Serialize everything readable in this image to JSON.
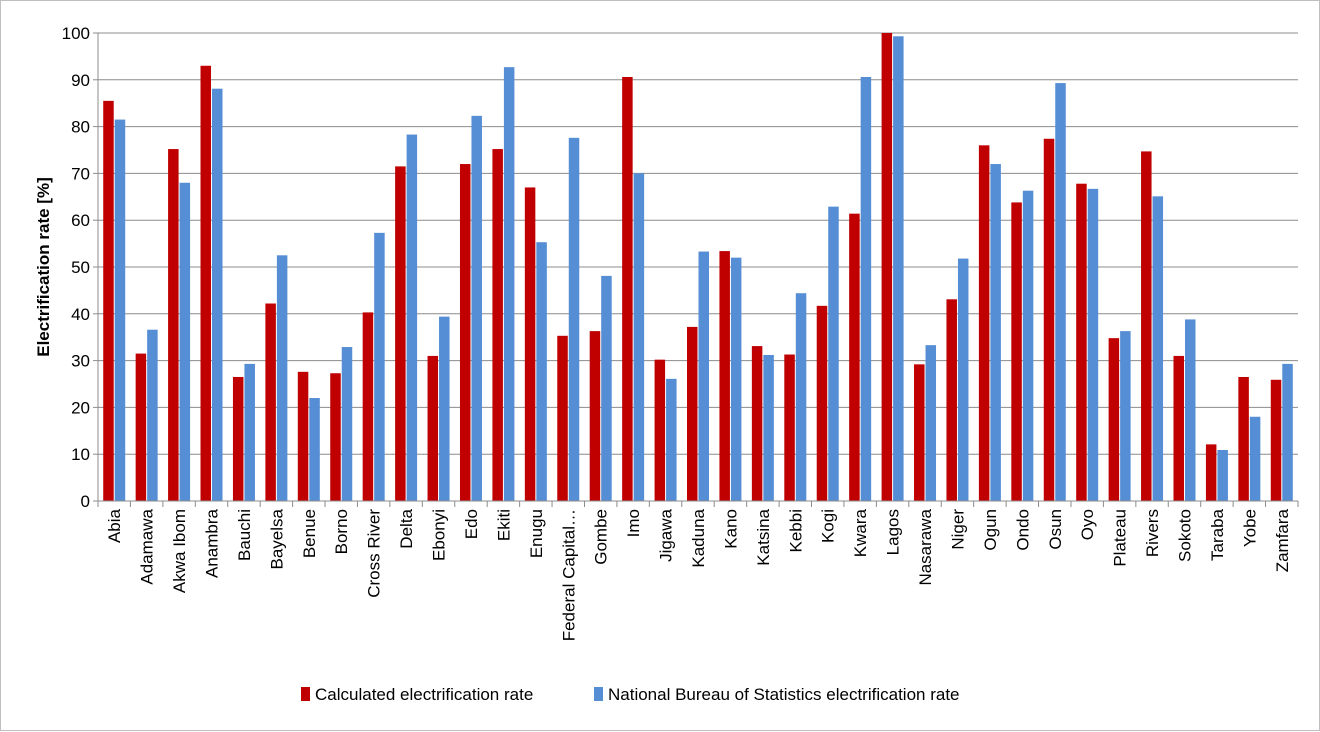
{
  "chart_data": {
    "type": "bar",
    "ylabel": "Electrification rate [%]",
    "xlabel": "",
    "ylim": [
      0,
      100
    ],
    "yticks": [
      0,
      10,
      20,
      30,
      40,
      50,
      60,
      70,
      80,
      90,
      100
    ],
    "grid": true,
    "legend_position": "bottom",
    "categories": [
      "Abia",
      "Adamawa",
      "Akwa Ibom",
      "Anambra",
      "Bauchi",
      "Bayelsa",
      "Benue",
      "Borno",
      "Cross River",
      "Delta",
      "Ebonyi",
      "Edo",
      "Ekiti",
      "Enugu",
      "Federal Capital…",
      "Gombe",
      "Imo",
      "Jigawa",
      "Kaduna",
      "Kano",
      "Katsina",
      "Kebbi",
      "Kogi",
      "Kwara",
      "Lagos",
      "Nasarawa",
      "Niger",
      "Ogun",
      "Ondo",
      "Osun",
      "Oyo",
      "Plateau",
      "Rivers",
      "Sokoto",
      "Taraba",
      "Yobe",
      "Zamfara"
    ],
    "series": [
      {
        "name": "Calculated electrification rate",
        "color": "#c00000",
        "values": [
          85.5,
          31.5,
          75.2,
          93.0,
          26.5,
          42.2,
          27.6,
          27.3,
          40.3,
          71.5,
          31.0,
          72.0,
          75.2,
          67.0,
          35.3,
          36.3,
          90.6,
          30.2,
          37.2,
          53.4,
          33.1,
          31.3,
          41.7,
          61.4,
          100.0,
          29.2,
          43.1,
          76.0,
          63.8,
          77.4,
          67.8,
          34.8,
          74.7,
          31.0,
          12.1,
          26.5,
          25.9
        ]
      },
      {
        "name": "National Bureau of Statistics electrification rate",
        "color": "#558ed5",
        "values": [
          81.5,
          36.6,
          68.0,
          88.1,
          29.3,
          52.5,
          22.0,
          32.9,
          57.3,
          78.3,
          39.4,
          82.3,
          92.7,
          55.3,
          77.6,
          48.1,
          70.0,
          26.1,
          53.3,
          52.0,
          31.2,
          44.4,
          62.9,
          90.6,
          99.3,
          33.3,
          51.8,
          72.0,
          66.3,
          89.3,
          66.7,
          36.3,
          65.1,
          38.8,
          10.9,
          18.0,
          29.3
        ]
      }
    ]
  }
}
